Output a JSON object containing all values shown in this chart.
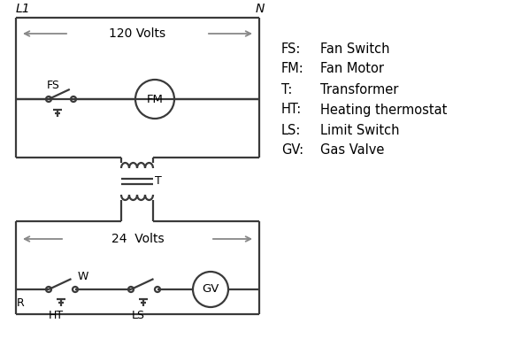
{
  "bg_color": "#ffffff",
  "line_color": "#3a3a3a",
  "arrow_color": "#888888",
  "text_color": "#000000",
  "legend": [
    [
      "FS:",
      "Fan Switch"
    ],
    [
      "FM:",
      "Fan Motor"
    ],
    [
      "T:",
      "Transformer"
    ],
    [
      "HT:",
      "Heating thermostat"
    ],
    [
      "LS:",
      "Limit Switch"
    ],
    [
      "GV:",
      "Gas Valve"
    ]
  ],
  "L1_label": "L1",
  "N_label": "N",
  "volts120": "120 Volts",
  "volts24": "24  Volts",
  "T_label": "T",
  "R_label": "R",
  "W_label": "W",
  "HT_label": "HT",
  "LS_label": "LS",
  "FS_label": "FS",
  "FM_label": "FM",
  "GV_label": "GV"
}
